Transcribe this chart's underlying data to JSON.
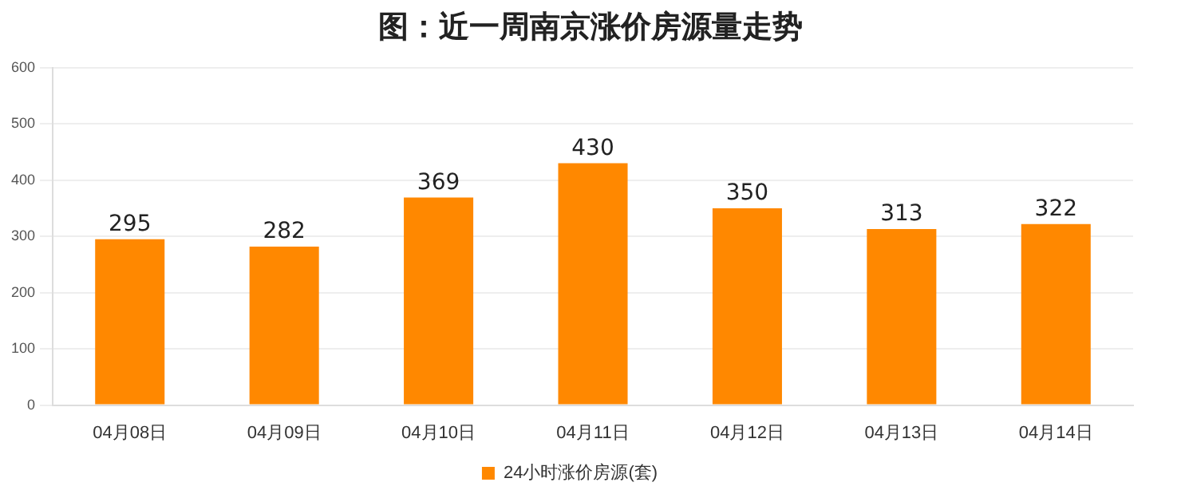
{
  "chart_data": {
    "type": "bar",
    "title": "图：近一周南京涨价房源量走势",
    "categories": [
      "04月08日",
      "04月09日",
      "04月10日",
      "04月11日",
      "04月12日",
      "04月13日",
      "04月14日"
    ],
    "series": [
      {
        "name": "24小时涨价房源(套)",
        "color": "#ff8800",
        "values": [
          295,
          282,
          369,
          430,
          350,
          313,
          322
        ]
      }
    ],
    "ylim": [
      0,
      600
    ],
    "yticks": [
      0,
      100,
      200,
      300,
      400,
      500,
      600
    ],
    "grid": "y",
    "legend": "bottom",
    "data_labels": true
  }
}
